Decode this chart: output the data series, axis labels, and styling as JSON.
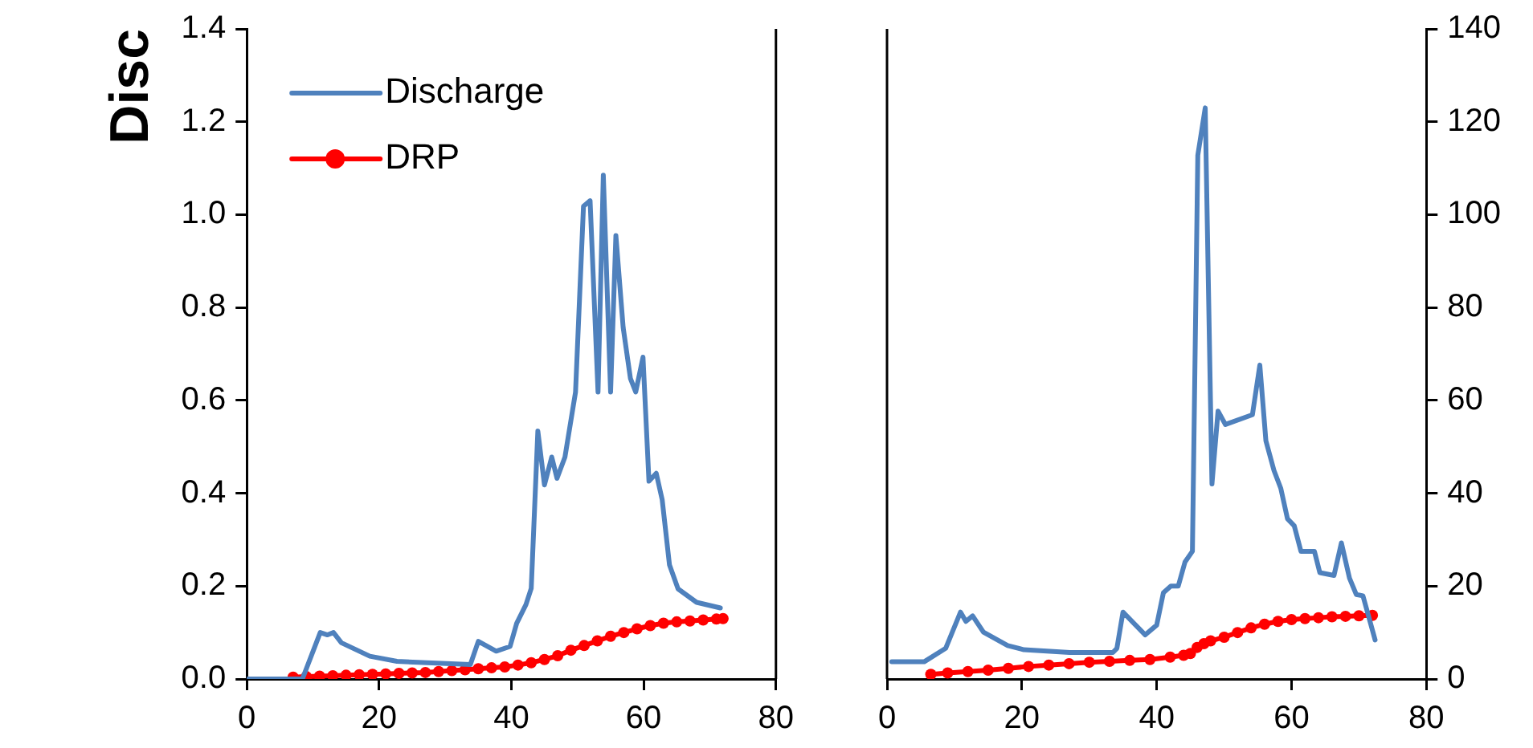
{
  "chart_data": [
    {
      "type": "line",
      "ylabel": "Disc",
      "xlim": [
        0,
        80
      ],
      "xticks": [
        0,
        20,
        40,
        60,
        80
      ],
      "ylim": [
        0,
        1.4
      ],
      "yticks": [
        {
          "value": 0,
          "label": "0.0"
        },
        0.2,
        0.4,
        0.6,
        0.8,
        {
          "value": 1,
          "label": "1.0"
        },
        1.2,
        1.4
      ],
      "grid": false,
      "legend": "top left",
      "series": [
        {
          "name": "Discharge",
          "color": "#4f81bd",
          "marker": "none",
          "x": [
            0,
            8.4,
            11.1,
            12.2,
            13.1,
            14.3,
            18.6,
            22.7,
            33.8,
            35,
            37.7,
            39.8,
            40.8,
            42.2,
            43,
            44,
            45,
            46.1,
            46.9,
            48.1,
            49.7,
            50.9,
            51.9,
            53.1,
            53.9,
            55,
            55.8,
            56.9,
            58,
            58.8,
            59.9,
            60.8,
            61.9,
            62.8,
            63.9,
            65.2,
            68,
            71.6
          ],
          "values": [
            0,
            0,
            0.1,
            0.095,
            0.1,
            0.078,
            0.049,
            0.038,
            0.031,
            0.081,
            0.06,
            0.07,
            0.12,
            0.16,
            0.195,
            0.534,
            0.418,
            0.478,
            0.432,
            0.478,
            0.618,
            1.018,
            1.03,
            0.618,
            1.085,
            0.618,
            0.955,
            0.757,
            0.647,
            0.618,
            0.693,
            0.426,
            0.443,
            0.386,
            0.246,
            0.194,
            0.165,
            0.153
          ]
        },
        {
          "name": "DRP",
          "color": "#ff0000",
          "marker": "circle",
          "x": [
            7,
            9,
            11,
            13,
            15,
            17,
            19,
            21,
            23,
            25,
            27,
            29,
            31,
            33,
            35,
            37,
            39,
            41,
            43,
            45,
            47,
            49,
            51,
            53,
            55,
            57,
            59,
            61,
            63,
            65,
            67,
            69,
            71,
            72
          ],
          "values": [
            0.004,
            0.005,
            0.006,
            0.007,
            0.008,
            0.009,
            0.01,
            0.011,
            0.012,
            0.013,
            0.014,
            0.016,
            0.018,
            0.02,
            0.022,
            0.024,
            0.026,
            0.03,
            0.035,
            0.042,
            0.05,
            0.062,
            0.072,
            0.082,
            0.092,
            0.1,
            0.108,
            0.115,
            0.12,
            0.123,
            0.125,
            0.127,
            0.129,
            0.13
          ]
        }
      ]
    },
    {
      "type": "line",
      "xlim": [
        0,
        80
      ],
      "xticks": [
        0,
        20,
        40,
        60,
        80
      ],
      "y2lim": [
        0,
        140
      ],
      "y2ticks": [
        0,
        20,
        40,
        60,
        80,
        100,
        120,
        140
      ],
      "grid": false,
      "series": [
        {
          "color": "#4f81bd",
          "marker": "none",
          "axis": "y2",
          "x": [
            0.7,
            5.5,
            8.7,
            10.9,
            11.7,
            12.7,
            14.3,
            17.9,
            20.3,
            27.1,
            33.5,
            34.1,
            35,
            38.3,
            40,
            41,
            42.1,
            43.2,
            44.2,
            45.3,
            46.1,
            47.2,
            48.2,
            49.1,
            50.2,
            54.2,
            55.3,
            56.2,
            57.4,
            58.4,
            59.4,
            60.4,
            61.4,
            63.4,
            64.2,
            66.3,
            67.4,
            68.6,
            69.6,
            70.6,
            72.4
          ],
          "values": [
            3.7,
            3.7,
            6.6,
            14.4,
            12.4,
            13.6,
            10.1,
            7.2,
            6.3,
            5.7,
            5.7,
            6.6,
            14.4,
            9.5,
            11.6,
            18.6,
            20,
            20,
            25.2,
            27.5,
            112.8,
            123,
            42,
            57.7,
            54.8,
            56.9,
            67.6,
            51.3,
            44.9,
            41.1,
            34.5,
            33,
            27.5,
            27.5,
            22.9,
            22.3,
            29.3,
            21.7,
            18.2,
            17.9,
            8.4
          ]
        },
        {
          "color": "#ff0000",
          "marker": "circle",
          "axis": "y2",
          "x": [
            6.5,
            9,
            12,
            15,
            18,
            21,
            24,
            27,
            30,
            33,
            36,
            39,
            42,
            44,
            45,
            46,
            47,
            48,
            50,
            52,
            54,
            56,
            58,
            60,
            62,
            64,
            66,
            68,
            70,
            72
          ],
          "values": [
            1,
            1.3,
            1.6,
            1.9,
            2.3,
            2.7,
            3,
            3.3,
            3.6,
            3.8,
            4,
            4.2,
            4.7,
            5.1,
            5.5,
            6.8,
            7.6,
            8.2,
            9,
            10,
            11,
            11.8,
            12.4,
            12.8,
            13,
            13.2,
            13.4,
            13.5,
            13.6,
            13.7
          ]
        }
      ]
    }
  ]
}
